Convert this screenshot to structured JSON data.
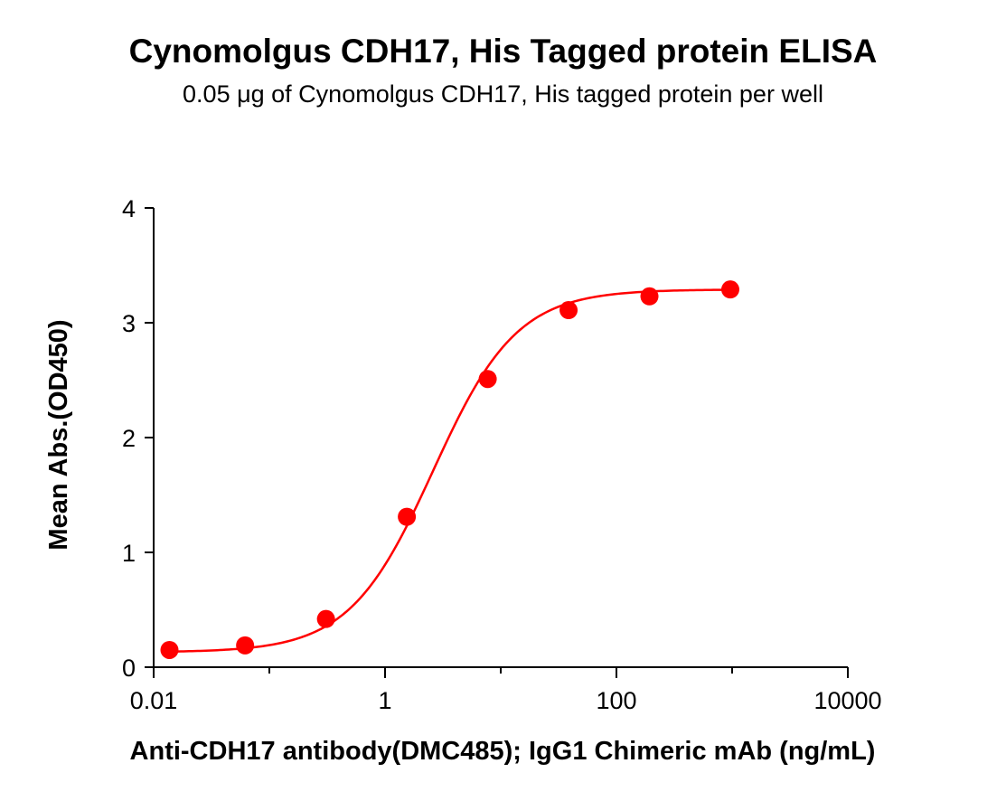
{
  "chart_data": {
    "type": "scatter",
    "title": "Cynomolgus CDH17, His Tagged protein ELISA",
    "subtitle": "0.05 μg of Cynomolgus CDH17, His tagged protein per well",
    "xlabel": "Anti-CDH17 antibody(DMC485); IgG1 Chimeric mAb (ng/mL)",
    "ylabel": "Mean Abs.(OD450)",
    "xscale": "log",
    "xlim": [
      0.01,
      10000
    ],
    "ylim": [
      0,
      4
    ],
    "xticks": [
      "0.01",
      "1",
      "100",
      "10000"
    ],
    "yticks": [
      "0",
      "1",
      "2",
      "3",
      "4"
    ],
    "grid": false,
    "series": [
      {
        "color": "#ff0000",
        "x": [
          0.0137,
          0.0617,
          0.3086,
          1.543,
          7.716,
          38.58,
          192.9,
          964.5
        ],
        "y": [
          0.15,
          0.19,
          0.42,
          1.31,
          2.51,
          3.11,
          3.23,
          3.29
        ]
      }
    ],
    "fit_curve": {
      "type": "4PL",
      "color": "#ff0000",
      "bottom": 0.13,
      "top": 3.29,
      "ec50": 2.6,
      "hill": 1.2
    }
  }
}
